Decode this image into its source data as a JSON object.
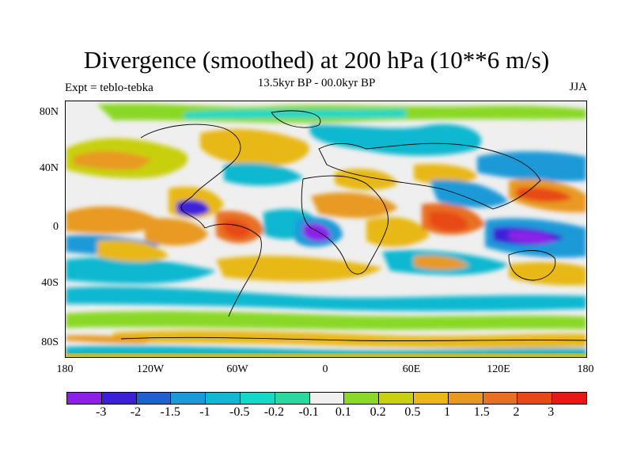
{
  "title": "Divergence (smoothed) at 200 hPa (10**6 m/s)",
  "subtitle_left": "Expt = teblo-tebka",
  "subtitle_center": "13.5kyr BP - 00.0kyr BP",
  "subtitle_right": "JJA",
  "lat_labels": [
    "80N",
    "40N",
    "0",
    "40S",
    "80S"
  ],
  "lon_labels": [
    "180",
    "120W",
    "60W",
    "0",
    "60E",
    "120E",
    "180"
  ],
  "colorbar": {
    "colors": [
      "#8c20e8",
      "#3c20d8",
      "#2060d0",
      "#1a9ad8",
      "#10b8d0",
      "#14d8c8",
      "#2ad8a0",
      "#f0f0f0",
      "#8ad828",
      "#c8d010",
      "#e8b818",
      "#e89a20",
      "#e87020",
      "#e84818",
      "#e81818"
    ],
    "labels": [
      "-3",
      "-2",
      "-1.5",
      "-1",
      "-0.5",
      "-0.2",
      "-0.1",
      "0.1",
      "0.2",
      "0.5",
      "1",
      "1.5",
      "2",
      "3"
    ]
  }
}
